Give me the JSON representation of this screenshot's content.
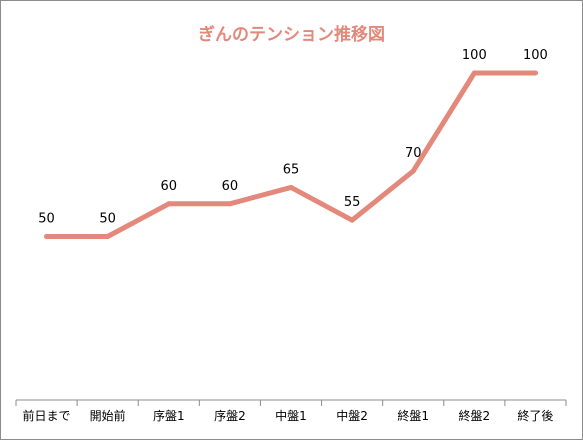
{
  "chart_data": {
    "type": "line",
    "title": "ぎんのテンション推移図",
    "categories": [
      "前日まで",
      "開始前",
      "序盤1",
      "序盤2",
      "中盤1",
      "中盤2",
      "終盤1",
      "終盤2",
      "終了後"
    ],
    "series": [
      {
        "values": [
          50,
          50,
          60,
          60,
          65,
          55,
          70,
          100,
          100
        ],
        "color": "#e3887a"
      }
    ],
    "data_labels": true,
    "ylim": [
      0,
      100
    ],
    "y_axis_visible": false,
    "grid": false,
    "legend": "none"
  }
}
